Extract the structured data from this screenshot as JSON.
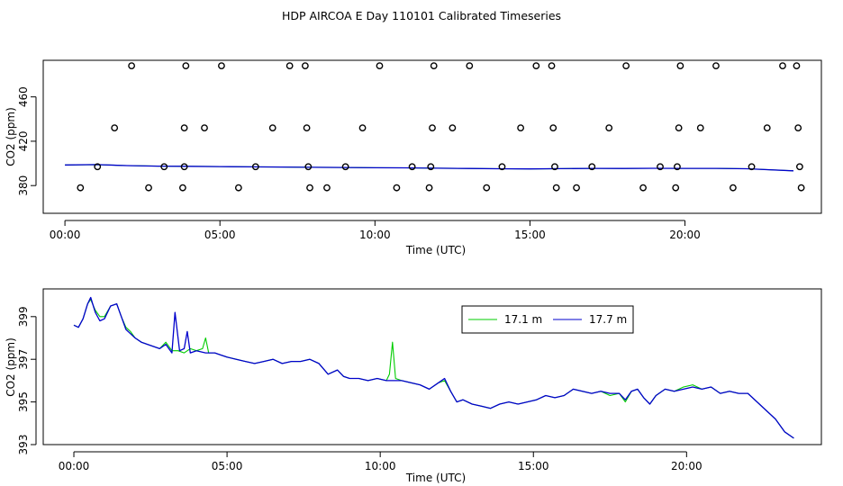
{
  "title": "HDP AIRCOA E  Day 110101  Calibrated Timeseries",
  "chart_data": [
    {
      "type": "scatter",
      "xlabel": "Time (UTC)",
      "ylabel": "CO2 (ppm)",
      "xlim": [
        -0.7,
        24.4
      ],
      "ylim": [
        355,
        493
      ],
      "x_ticks": [
        "00:00",
        "05:00",
        "10:00",
        "15:00",
        "20:00"
      ],
      "x_tick_values": [
        0,
        5,
        10,
        15,
        20
      ],
      "y_ticks": [
        "380",
        "420",
        "460"
      ],
      "y_tick_values": [
        380,
        420,
        460
      ],
      "points": [
        [
          0.5,
          378
        ],
        [
          1.05,
          397
        ],
        [
          1.6,
          432
        ],
        [
          2.15,
          488
        ],
        [
          2.7,
          378
        ],
        [
          3.2,
          397
        ],
        [
          3.8,
          378
        ],
        [
          3.85,
          432
        ],
        [
          3.85,
          397
        ],
        [
          3.9,
          488
        ],
        [
          4.5,
          432
        ],
        [
          5.05,
          488
        ],
        [
          5.6,
          378
        ],
        [
          6.15,
          397
        ],
        [
          6.7,
          432
        ],
        [
          7.25,
          488
        ],
        [
          7.75,
          488
        ],
        [
          7.8,
          432
        ],
        [
          7.85,
          397
        ],
        [
          7.9,
          378
        ],
        [
          8.45,
          378
        ],
        [
          9.05,
          397
        ],
        [
          9.6,
          432
        ],
        [
          10.15,
          488
        ],
        [
          10.7,
          378
        ],
        [
          11.2,
          397
        ],
        [
          11.75,
          378
        ],
        [
          11.8,
          397
        ],
        [
          11.85,
          432
        ],
        [
          11.9,
          488
        ],
        [
          12.5,
          432
        ],
        [
          13.05,
          488
        ],
        [
          13.6,
          378
        ],
        [
          14.1,
          397
        ],
        [
          14.7,
          432
        ],
        [
          15.2,
          488
        ],
        [
          15.7,
          488
        ],
        [
          15.75,
          432
        ],
        [
          15.8,
          397
        ],
        [
          15.85,
          378
        ],
        [
          16.5,
          378
        ],
        [
          17.0,
          397
        ],
        [
          17.55,
          432
        ],
        [
          18.1,
          488
        ],
        [
          18.65,
          378
        ],
        [
          19.2,
          397
        ],
        [
          19.7,
          378
        ],
        [
          19.75,
          397
        ],
        [
          19.8,
          432
        ],
        [
          19.85,
          488
        ],
        [
          20.5,
          432
        ],
        [
          21.0,
          488
        ],
        [
          21.55,
          378
        ],
        [
          22.15,
          397
        ],
        [
          22.65,
          432
        ],
        [
          23.15,
          488
        ],
        [
          23.6,
          488
        ],
        [
          23.65,
          432
        ],
        [
          23.7,
          397
        ],
        [
          23.75,
          378
        ]
      ],
      "series": [
        {
          "color": "#00cc00",
          "x": [
            0.0,
            1.0,
            2.0,
            3.0,
            4.0,
            5.0,
            6.0,
            7.0,
            8.0,
            9.0,
            10.0,
            11.0,
            12.0,
            13.0,
            14.0,
            15.0,
            16.0,
            17.0,
            18.0,
            19.0,
            20.0,
            21.0,
            22.0,
            23.5
          ],
          "values": [
            398.6,
            398.9,
            398.0,
            397.5,
            397.4,
            397.1,
            396.9,
            396.7,
            396.5,
            396.3,
            396.1,
            396.0,
            395.7,
            395.4,
            395.2,
            395.0,
            395.3,
            395.5,
            395.4,
            395.6,
            395.5,
            395.5,
            395.2,
            393.3
          ]
        },
        {
          "color": "#0000cc",
          "x": [
            0.0,
            1.0,
            2.0,
            3.0,
            4.0,
            5.0,
            6.0,
            7.0,
            8.0,
            9.0,
            10.0,
            11.0,
            12.0,
            13.0,
            14.0,
            15.0,
            16.0,
            17.0,
            18.0,
            19.0,
            20.0,
            21.0,
            22.0,
            23.5
          ],
          "values": [
            398.6,
            398.9,
            398.0,
            397.5,
            397.4,
            397.1,
            396.9,
            396.7,
            396.5,
            396.3,
            396.1,
            396.0,
            395.7,
            395.4,
            395.2,
            395.0,
            395.3,
            395.5,
            395.4,
            395.6,
            395.5,
            395.5,
            395.2,
            393.3
          ]
        }
      ]
    },
    {
      "type": "line",
      "xlabel": "Time (UTC)",
      "ylabel": "CO2 (ppm)",
      "xlim": [
        -1.0,
        24.4
      ],
      "ylim": [
        393,
        400.3
      ],
      "x_ticks": [
        "00:00",
        "05:00",
        "10:00",
        "15:00",
        "20:00"
      ],
      "x_tick_values": [
        0,
        5,
        10,
        15,
        20
      ],
      "y_ticks": [
        "393",
        "395",
        "397",
        "399"
      ],
      "y_tick_values": [
        393,
        395,
        397,
        399
      ],
      "legend": "top-center",
      "series": [
        {
          "name": "17.1 m",
          "color": "#00cc00",
          "x": [
            0.0,
            0.15,
            0.3,
            0.45,
            0.55,
            0.7,
            0.85,
            1.0,
            1.2,
            1.4,
            1.55,
            1.7,
            1.85,
            2.0,
            2.2,
            2.4,
            2.6,
            2.8,
            3.0,
            3.2,
            3.4,
            3.6,
            3.8,
            4.0,
            4.2,
            4.3,
            4.4,
            4.6,
            4.8,
            5.0,
            5.3,
            5.6,
            5.9,
            6.2,
            6.5,
            6.8,
            7.1,
            7.4,
            7.7,
            8.0,
            8.3,
            8.6,
            8.8,
            9.0,
            9.3,
            9.6,
            9.9,
            10.2,
            10.3,
            10.4,
            10.5,
            10.7,
            11.0,
            11.3,
            11.6,
            11.9,
            12.1,
            12.3,
            12.5,
            12.7,
            13.0,
            13.3,
            13.6,
            13.9,
            14.2,
            14.5,
            14.8,
            15.1,
            15.4,
            15.7,
            16.0,
            16.3,
            16.6,
            16.9,
            17.2,
            17.5,
            17.8,
            18.0,
            18.2,
            18.4,
            18.6,
            18.8,
            19.0,
            19.3,
            19.6,
            19.9,
            20.2,
            20.5,
            20.8,
            21.1,
            21.4,
            21.7,
            22.0,
            22.3,
            22.6,
            22.9,
            23.2,
            23.5
          ],
          "values": [
            398.6,
            398.5,
            398.9,
            399.6,
            399.8,
            399.3,
            399.0,
            399.0,
            399.5,
            399.6,
            399.0,
            398.5,
            398.3,
            398.0,
            397.8,
            397.7,
            397.6,
            397.5,
            397.8,
            397.4,
            397.4,
            397.3,
            397.5,
            397.4,
            397.5,
            398.0,
            397.3,
            397.3,
            397.2,
            397.1,
            397.0,
            396.9,
            396.8,
            396.9,
            397.0,
            396.8,
            396.9,
            396.9,
            397.0,
            396.8,
            396.3,
            396.5,
            396.2,
            396.1,
            396.1,
            396.0,
            396.1,
            396.0,
            396.3,
            397.8,
            396.1,
            396.0,
            395.9,
            395.8,
            395.6,
            395.9,
            396.0,
            395.5,
            395.0,
            395.1,
            394.9,
            394.8,
            394.7,
            394.9,
            395.0,
            394.9,
            395.0,
            395.1,
            395.3,
            395.2,
            395.3,
            395.6,
            395.5,
            395.4,
            395.5,
            395.3,
            395.4,
            395.0,
            395.5,
            395.6,
            395.2,
            394.9,
            395.3,
            395.6,
            395.5,
            395.7,
            395.8,
            395.6,
            395.7,
            395.4,
            395.5,
            395.4,
            395.4,
            395.0,
            394.6,
            394.2,
            393.6,
            393.3
          ]
        },
        {
          "name": "17.7 m",
          "color": "#0000cc",
          "x": [
            0.0,
            0.15,
            0.3,
            0.45,
            0.55,
            0.7,
            0.85,
            1.0,
            1.2,
            1.4,
            1.55,
            1.7,
            1.85,
            2.0,
            2.2,
            2.4,
            2.6,
            2.8,
            3.0,
            3.2,
            3.3,
            3.45,
            3.6,
            3.7,
            3.8,
            4.0,
            4.3,
            4.6,
            4.8,
            5.0,
            5.3,
            5.6,
            5.9,
            6.2,
            6.5,
            6.8,
            7.1,
            7.4,
            7.7,
            8.0,
            8.3,
            8.6,
            8.8,
            9.0,
            9.3,
            9.6,
            9.9,
            10.2,
            10.5,
            10.7,
            11.0,
            11.3,
            11.6,
            11.9,
            12.1,
            12.3,
            12.5,
            12.7,
            13.0,
            13.3,
            13.6,
            13.9,
            14.2,
            14.5,
            14.8,
            15.1,
            15.4,
            15.7,
            16.0,
            16.3,
            16.6,
            16.9,
            17.2,
            17.5,
            17.8,
            18.0,
            18.2,
            18.4,
            18.6,
            18.8,
            19.0,
            19.3,
            19.6,
            19.9,
            20.2,
            20.5,
            20.8,
            21.1,
            21.4,
            21.7,
            22.0,
            22.3,
            22.6,
            22.9,
            23.2,
            23.5
          ],
          "values": [
            398.6,
            398.5,
            398.9,
            399.6,
            399.9,
            399.2,
            398.8,
            398.9,
            399.5,
            399.6,
            399.0,
            398.4,
            398.2,
            398.0,
            397.8,
            397.7,
            397.6,
            397.5,
            397.7,
            397.3,
            399.2,
            397.4,
            397.5,
            398.3,
            397.3,
            397.4,
            397.3,
            397.3,
            397.2,
            397.1,
            397.0,
            396.9,
            396.8,
            396.9,
            397.0,
            396.8,
            396.9,
            396.9,
            397.0,
            396.8,
            396.3,
            396.5,
            396.2,
            396.1,
            396.1,
            396.0,
            396.1,
            396.0,
            396.0,
            396.0,
            395.9,
            395.8,
            395.6,
            395.9,
            396.1,
            395.5,
            395.0,
            395.1,
            394.9,
            394.8,
            394.7,
            394.9,
            395.0,
            394.9,
            395.0,
            395.1,
            395.3,
            395.2,
            395.3,
            395.6,
            395.5,
            395.4,
            395.5,
            395.4,
            395.4,
            395.1,
            395.5,
            395.6,
            395.2,
            394.9,
            395.3,
            395.6,
            395.5,
            395.6,
            395.7,
            395.6,
            395.7,
            395.4,
            395.5,
            395.4,
            395.4,
            395.0,
            394.6,
            394.2,
            393.6,
            393.3
          ]
        }
      ]
    }
  ]
}
